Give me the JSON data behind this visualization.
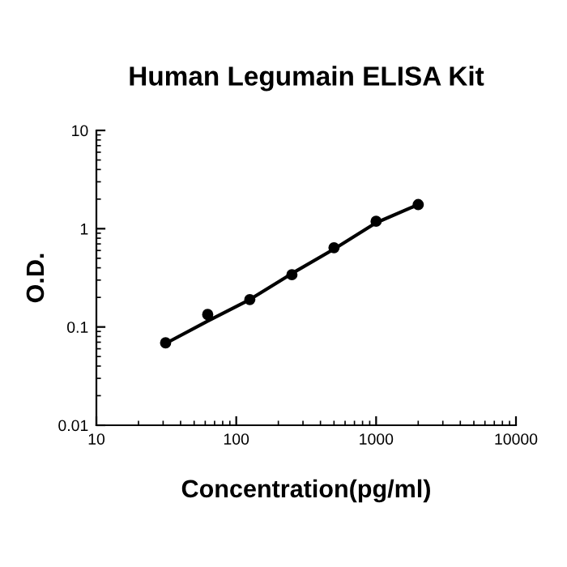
{
  "chart_data": {
    "type": "scatter",
    "title": "Human Legumain ELISA Kit",
    "xlabel": "Concentration(pg/ml)",
    "ylabel": "O.D.",
    "log": "xy",
    "xlim": [
      10,
      10000
    ],
    "ylim": [
      0.01,
      10
    ],
    "xticks": [
      10,
      100,
      1000,
      10000
    ],
    "yticks": [
      0.01,
      0.1,
      1,
      10
    ],
    "grid": false,
    "legend": false,
    "series": [
      {
        "color": "#000000",
        "marker": "circle",
        "x": [
          31.25,
          62.5,
          125,
          250,
          500,
          1000,
          2000
        ],
        "values": [
          0.069,
          0.134,
          0.19,
          0.34,
          0.64,
          1.19,
          1.76
        ]
      },
      {
        "type": "line",
        "color": "#000000",
        "marker": "none",
        "line_style": "solid",
        "x": [
          31.25,
          62.5,
          125,
          250,
          500,
          1000,
          2000
        ],
        "values": [
          0.068,
          0.115,
          0.19,
          0.35,
          0.62,
          1.15,
          1.76
        ]
      }
    ]
  }
}
